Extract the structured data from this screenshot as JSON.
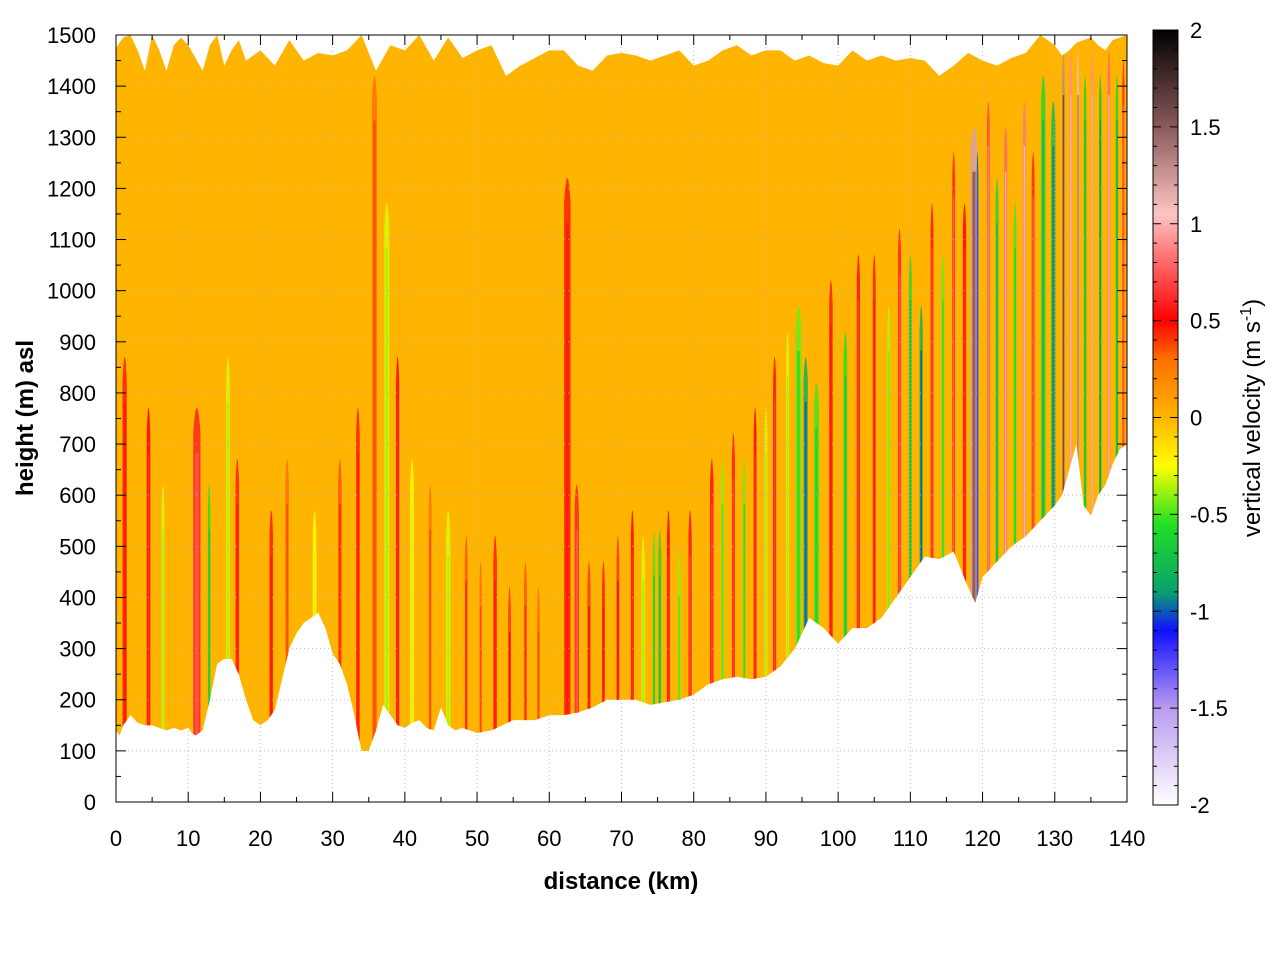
{
  "chart_data": {
    "type": "heatmap",
    "title": "",
    "xlabel": "distance (km)",
    "ylabel": "height (m) asl",
    "xlim": [
      0,
      140
    ],
    "ylim": [
      0,
      1500
    ],
    "xticks": [
      "0",
      "10",
      "20",
      "30",
      "40",
      "50",
      "60",
      "70",
      "80",
      "90",
      "100",
      "110",
      "120",
      "130",
      "140"
    ],
    "yticks": [
      "0",
      "100",
      "200",
      "300",
      "400",
      "500",
      "600",
      "700",
      "800",
      "900",
      "1000",
      "1100",
      "1200",
      "1300",
      "1400",
      "1500"
    ],
    "grid": true,
    "colorbar": {
      "label_main": "vertical velocity (m s",
      "label_sup": "-1",
      "label_close": ")",
      "range": [
        -2,
        2
      ],
      "ticks": [
        "-2",
        "-1.5",
        "-1",
        "-0.5",
        "0",
        "0.5",
        "1",
        "1.5",
        "2"
      ],
      "stops": [
        {
          "v": -2.0,
          "color": "#ffffff"
        },
        {
          "v": -1.5,
          "color": "#b99bf0"
        },
        {
          "v": -1.1,
          "color": "#1010ff"
        },
        {
          "v": -0.9,
          "color": "#0aa06e"
        },
        {
          "v": -0.55,
          "color": "#22e022"
        },
        {
          "v": -0.25,
          "color": "#ffff00"
        },
        {
          "v": 0.0,
          "color": "#ffb400"
        },
        {
          "v": 0.3,
          "color": "#ff7000"
        },
        {
          "v": 0.5,
          "color": "#ff0000"
        },
        {
          "v": 0.85,
          "color": "#ff7a7a"
        },
        {
          "v": 1.05,
          "color": "#ffc4c4"
        },
        {
          "v": 1.5,
          "color": "#8a5a5a"
        },
        {
          "v": 2.0,
          "color": "#000000"
        }
      ]
    },
    "terrain_m": {
      "x": [
        0,
        0.5,
        1,
        2,
        3,
        4,
        5,
        6,
        7,
        8,
        9,
        10,
        10.5,
        11,
        12,
        13,
        14,
        15,
        16,
        17,
        18,
        19,
        20,
        21,
        22,
        23,
        24,
        25,
        26,
        27,
        28,
        29,
        30,
        31,
        32,
        33,
        34,
        35,
        36,
        37,
        38,
        39,
        40,
        41,
        42,
        43,
        44,
        45,
        46,
        47,
        48,
        50,
        52,
        55,
        58,
        60,
        62,
        64,
        66,
        68,
        70,
        72,
        74,
        76,
        78,
        80,
        82,
        84,
        86,
        88,
        90,
        92,
        94,
        96,
        98,
        100,
        102,
        104,
        106,
        108,
        110,
        112,
        114,
        116,
        118,
        119,
        120,
        122,
        124,
        126,
        128,
        130,
        131,
        132,
        133,
        134,
        135,
        136,
        137,
        138,
        139,
        140
      ],
      "y": [
        140,
        130,
        150,
        170,
        155,
        150,
        150,
        145,
        140,
        145,
        140,
        145,
        135,
        130,
        140,
        200,
        270,
        280,
        280,
        250,
        200,
        160,
        150,
        160,
        180,
        240,
        300,
        330,
        350,
        360,
        370,
        340,
        290,
        270,
        230,
        170,
        100,
        100,
        140,
        190,
        170,
        150,
        145,
        155,
        160,
        145,
        140,
        185,
        150,
        140,
        145,
        135,
        140,
        160,
        160,
        170,
        170,
        175,
        185,
        200,
        200,
        200,
        190,
        195,
        200,
        210,
        230,
        240,
        245,
        240,
        245,
        265,
        300,
        360,
        340,
        310,
        340,
        340,
        360,
        400,
        440,
        480,
        475,
        490,
        420,
        390,
        440,
        470,
        500,
        520,
        550,
        580,
        600,
        650,
        700,
        580,
        560,
        600,
        620,
        660,
        690,
        700
      ],
      "top_x": [
        0,
        1,
        2,
        3,
        4,
        5,
        6,
        7,
        8,
        9,
        10,
        11,
        12,
        13,
        14,
        15,
        16,
        17,
        18,
        19,
        20,
        22,
        24,
        26,
        28,
        30,
        32,
        34,
        36,
        38,
        40,
        42,
        44,
        46,
        48,
        50,
        52,
        54,
        56,
        58,
        60,
        62,
        64,
        66,
        68,
        70,
        72,
        74,
        76,
        78,
        80,
        82,
        84,
        86,
        88,
        90,
        92,
        94,
        96,
        98,
        100,
        102,
        104,
        106,
        108,
        110,
        112,
        114,
        116,
        118,
        120,
        122,
        124,
        126,
        128,
        130,
        131,
        132,
        133,
        134,
        135,
        136,
        137,
        138,
        139,
        140
      ],
      "top_y": [
        1475,
        1495,
        1500,
        1470,
        1430,
        1500,
        1470,
        1430,
        1480,
        1495,
        1480,
        1455,
        1430,
        1480,
        1500,
        1440,
        1470,
        1490,
        1450,
        1460,
        1470,
        1440,
        1490,
        1450,
        1465,
        1460,
        1470,
        1500,
        1430,
        1480,
        1470,
        1500,
        1450,
        1495,
        1455,
        1470,
        1480,
        1420,
        1440,
        1455,
        1470,
        1470,
        1440,
        1430,
        1460,
        1465,
        1460,
        1450,
        1460,
        1470,
        1440,
        1450,
        1470,
        1480,
        1460,
        1470,
        1470,
        1450,
        1460,
        1445,
        1440,
        1470,
        1450,
        1460,
        1450,
        1455,
        1450,
        1420,
        1440,
        1465,
        1450,
        1440,
        1455,
        1465,
        1500,
        1480,
        1460,
        1470,
        1485,
        1490,
        1495,
        1480,
        1470,
        1490,
        1495,
        1500
      ]
    },
    "features": [
      {
        "x": 1.2,
        "w": 0.6,
        "v": 0.45,
        "ytop": 900
      },
      {
        "x": 4.5,
        "w": 0.5,
        "v": 0.5,
        "ytop": 800
      },
      {
        "x": 6.5,
        "w": 0.4,
        "v": -0.3,
        "ytop": 650
      },
      {
        "x": 11.2,
        "w": 1.0,
        "v": 0.6,
        "ytop": 800
      },
      {
        "x": 12.9,
        "w": 0.35,
        "v": -0.55,
        "ytop": 650
      },
      {
        "x": 15.5,
        "w": 0.5,
        "v": -0.3,
        "ytop": 900
      },
      {
        "x": 16.8,
        "w": 0.5,
        "v": 0.45,
        "ytop": 700
      },
      {
        "x": 21.5,
        "w": 0.5,
        "v": 0.45,
        "ytop": 600
      },
      {
        "x": 23.7,
        "w": 0.5,
        "v": 0.3,
        "ytop": 700
      },
      {
        "x": 27.5,
        "w": 0.5,
        "v": -0.25,
        "ytop": 600
      },
      {
        "x": 31.0,
        "w": 0.5,
        "v": 0.35,
        "ytop": 700
      },
      {
        "x": 33.5,
        "w": 0.5,
        "v": 0.45,
        "ytop": 800
      },
      {
        "x": 35.8,
        "w": 0.7,
        "v": 0.3,
        "ytop": 1450
      },
      {
        "x": 37.5,
        "w": 0.7,
        "v": -0.3,
        "ytop": 1200
      },
      {
        "x": 39.0,
        "w": 0.45,
        "v": 0.5,
        "ytop": 900
      },
      {
        "x": 41.0,
        "w": 0.5,
        "v": -0.25,
        "ytop": 700
      },
      {
        "x": 43.5,
        "w": 0.4,
        "v": 0.3,
        "ytop": 650
      },
      {
        "x": 46.0,
        "w": 0.6,
        "v": -0.3,
        "ytop": 600
      },
      {
        "x": 48.5,
        "w": 0.4,
        "v": 0.35,
        "ytop": 550
      },
      {
        "x": 50.5,
        "w": 0.35,
        "v": 0.3,
        "ytop": 500
      },
      {
        "x": 52.5,
        "w": 0.5,
        "v": 0.45,
        "ytop": 550
      },
      {
        "x": 54.5,
        "w": 0.4,
        "v": 0.4,
        "ytop": 450
      },
      {
        "x": 56.7,
        "w": 0.4,
        "v": 0.35,
        "ytop": 500
      },
      {
        "x": 58.5,
        "w": 0.4,
        "v": 0.3,
        "ytop": 450
      },
      {
        "x": 62.5,
        "w": 0.9,
        "v": 0.45,
        "ytop": 1250
      },
      {
        "x": 63.8,
        "w": 0.6,
        "v": 0.6,
        "ytop": 650
      },
      {
        "x": 65.5,
        "w": 0.45,
        "v": 0.4,
        "ytop": 500
      },
      {
        "x": 67.5,
        "w": 0.4,
        "v": 0.45,
        "ytop": 500
      },
      {
        "x": 69.5,
        "w": 0.4,
        "v": 0.4,
        "ytop": 550
      },
      {
        "x": 71.5,
        "w": 0.4,
        "v": 0.5,
        "ytop": 600
      },
      {
        "x": 73.0,
        "w": 0.5,
        "v": -0.3,
        "ytop": 550
      },
      {
        "x": 74.5,
        "w": 0.35,
        "v": -0.5,
        "ytop": 560
      },
      {
        "x": 75.3,
        "w": 0.4,
        "v": -0.6,
        "ytop": 560
      },
      {
        "x": 76.5,
        "w": 0.4,
        "v": 0.5,
        "ytop": 600
      },
      {
        "x": 78.0,
        "w": 0.4,
        "v": -0.4,
        "ytop": 520
      },
      {
        "x": 79.5,
        "w": 0.45,
        "v": 0.55,
        "ytop": 600
      },
      {
        "x": 82.5,
        "w": 0.5,
        "v": 0.55,
        "ytop": 700
      },
      {
        "x": 84.0,
        "w": 0.4,
        "v": -0.4,
        "ytop": 700
      },
      {
        "x": 85.5,
        "w": 0.4,
        "v": 0.55,
        "ytop": 750
      },
      {
        "x": 87.0,
        "w": 0.35,
        "v": -0.45,
        "ytop": 700
      },
      {
        "x": 88.5,
        "w": 0.4,
        "v": 0.5,
        "ytop": 800
      },
      {
        "x": 90.0,
        "w": 0.4,
        "v": -0.3,
        "ytop": 800
      },
      {
        "x": 91.2,
        "w": 0.45,
        "v": 0.55,
        "ytop": 900
      },
      {
        "x": 93.0,
        "w": 0.4,
        "v": -0.3,
        "ytop": 950
      },
      {
        "x": 94.5,
        "w": 0.8,
        "v": -0.45,
        "ytop": 1000
      },
      {
        "x": 95.5,
        "w": 0.6,
        "v": -0.8,
        "ytop": 900
      },
      {
        "x": 97.0,
        "w": 0.7,
        "v": -0.5,
        "ytop": 850
      },
      {
        "x": 99.0,
        "w": 0.5,
        "v": 0.45,
        "ytop": 1050
      },
      {
        "x": 101.0,
        "w": 0.5,
        "v": -0.55,
        "ytop": 950
      },
      {
        "x": 102.8,
        "w": 0.45,
        "v": 0.55,
        "ytop": 1100
      },
      {
        "x": 105.0,
        "w": 0.4,
        "v": 0.45,
        "ytop": 1100
      },
      {
        "x": 107.0,
        "w": 0.4,
        "v": -0.35,
        "ytop": 1000
      },
      {
        "x": 108.5,
        "w": 0.45,
        "v": 0.6,
        "ytop": 1150
      },
      {
        "x": 110.0,
        "w": 0.4,
        "v": -0.6,
        "ytop": 1100
      },
      {
        "x": 111.5,
        "w": 0.45,
        "v": -0.8,
        "ytop": 1000
      },
      {
        "x": 113.0,
        "w": 0.4,
        "v": 0.55,
        "ytop": 1200
      },
      {
        "x": 114.5,
        "w": 0.4,
        "v": -0.45,
        "ytop": 1100
      },
      {
        "x": 116.0,
        "w": 0.4,
        "v": 0.6,
        "ytop": 1300
      },
      {
        "x": 117.5,
        "w": 0.45,
        "v": 0.5,
        "ytop": 1200
      },
      {
        "x": 118.8,
        "w": 1.0,
        "v": 1.2,
        "ytop": 1350
      },
      {
        "x": 119.3,
        "w": 0.25,
        "v": -1.0,
        "ytop": 1300
      },
      {
        "x": 120.8,
        "w": 0.4,
        "v": 0.7,
        "ytop": 1400
      },
      {
        "x": 122.0,
        "w": 0.4,
        "v": -0.6,
        "ytop": 1250
      },
      {
        "x": 123.2,
        "w": 0.45,
        "v": 0.8,
        "ytop": 1350
      },
      {
        "x": 124.5,
        "w": 0.4,
        "v": -0.5,
        "ytop": 1200
      },
      {
        "x": 125.8,
        "w": 0.45,
        "v": 0.85,
        "ytop": 1400
      },
      {
        "x": 127.0,
        "w": 0.4,
        "v": 0.6,
        "ytop": 1300
      },
      {
        "x": 128.4,
        "w": 0.6,
        "v": -0.6,
        "ytop": 1450
      },
      {
        "x": 129.8,
        "w": 0.6,
        "v": -0.75,
        "ytop": 1400
      },
      {
        "x": 131.2,
        "w": 0.35,
        "v": 1.3,
        "ytop": 1500
      },
      {
        "x": 132.2,
        "w": 0.35,
        "v": 0.9,
        "ytop": 1500
      },
      {
        "x": 133.2,
        "w": 0.3,
        "v": 1.1,
        "ytop": 1500
      },
      {
        "x": 134.2,
        "w": 0.35,
        "v": -0.6,
        "ytop": 1450
      },
      {
        "x": 135.2,
        "w": 0.3,
        "v": 0.9,
        "ytop": 1500
      },
      {
        "x": 136.3,
        "w": 0.35,
        "v": -0.7,
        "ytop": 1450
      },
      {
        "x": 137.5,
        "w": 0.35,
        "v": 0.8,
        "ytop": 1500
      },
      {
        "x": 138.6,
        "w": 0.35,
        "v": -0.6,
        "ytop": 1450
      },
      {
        "x": 139.5,
        "w": 0.3,
        "v": 0.6,
        "ytop": 1480
      }
    ]
  }
}
